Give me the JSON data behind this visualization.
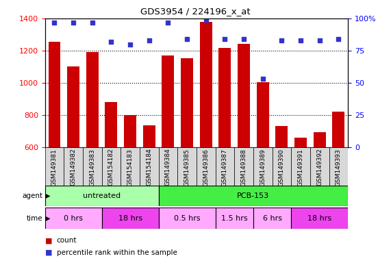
{
  "title": "GDS3954 / 224196_x_at",
  "samples": [
    "GSM149381",
    "GSM149382",
    "GSM149383",
    "GSM154182",
    "GSM154183",
    "GSM154184",
    "GSM149384",
    "GSM149385",
    "GSM149386",
    "GSM149387",
    "GSM149388",
    "GSM149389",
    "GSM149390",
    "GSM149391",
    "GSM149392",
    "GSM149393"
  ],
  "counts": [
    1253,
    1100,
    1193,
    882,
    800,
    735,
    1170,
    1155,
    1380,
    1218,
    1243,
    1002,
    730,
    660,
    693,
    820
  ],
  "percentile": [
    97,
    97,
    97,
    82,
    80,
    83,
    97,
    84,
    99,
    84,
    84,
    53,
    83,
    83,
    83,
    84
  ],
  "ylim_left": [
    600,
    1400
  ],
  "ylim_right": [
    0,
    100
  ],
  "yticks_left": [
    600,
    800,
    1000,
    1200,
    1400
  ],
  "yticks_right": [
    0,
    25,
    50,
    75,
    100
  ],
  "bar_color": "#cc0000",
  "dot_color": "#3333cc",
  "agent_groups": [
    {
      "label": "untreated",
      "start": 0,
      "end": 6,
      "color": "#aaffaa"
    },
    {
      "label": "PCB-153",
      "start": 6,
      "end": 16,
      "color": "#44ee44"
    }
  ],
  "time_groups": [
    {
      "label": "0 hrs",
      "start": 0,
      "end": 3,
      "color": "#ffaaff"
    },
    {
      "label": "18 hrs",
      "start": 3,
      "end": 6,
      "color": "#ee44ee"
    },
    {
      "label": "0.5 hrs",
      "start": 6,
      "end": 9,
      "color": "#ffaaff"
    },
    {
      "label": "1.5 hrs",
      "start": 9,
      "end": 11,
      "color": "#ffaaff"
    },
    {
      "label": "6 hrs",
      "start": 11,
      "end": 13,
      "color": "#ffaaff"
    },
    {
      "label": "18 hrs",
      "start": 13,
      "end": 16,
      "color": "#ee44ee"
    }
  ],
  "legend_count_color": "#cc0000",
  "legend_dot_color": "#3333cc",
  "background_color": "#ffffff",
  "plot_bg_color": "#ffffff",
  "sample_cell_color": "#d8d8d8"
}
